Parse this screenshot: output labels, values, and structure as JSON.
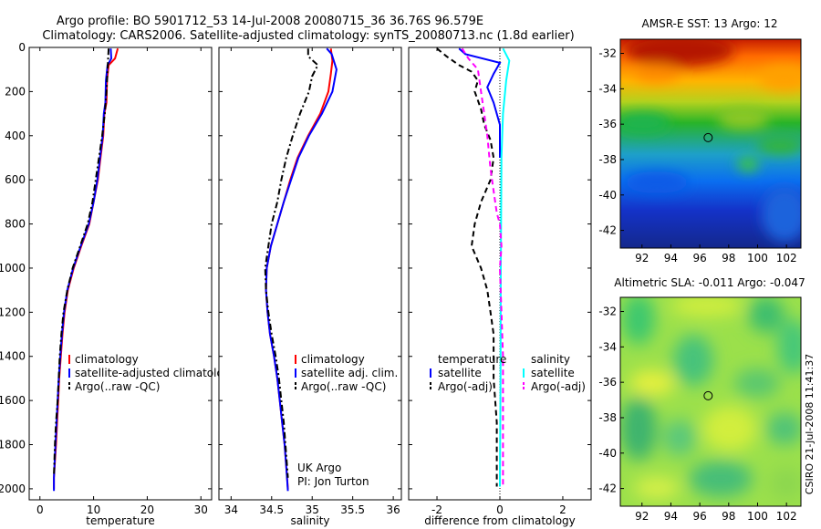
{
  "title_line1": "Argo profile: BO 5901712_53 14-Jul-2008 20080715_36 36.76S 96.579E",
  "title_line2": "Climatology: CARS2006. Satellite-adjusted climatology: synTS_20080713.nc (1.8d earlier)",
  "colors": {
    "climatology": "#ff0000",
    "satellite": "#0000ff",
    "argo": "#000000",
    "salinity_satellite": "#00ffff",
    "salinity_argo": "#ff00ff"
  },
  "chart_data": [
    {
      "id": "temperature",
      "type": "line",
      "xlabel": "temperature",
      "xlim": [
        -2,
        32
      ],
      "ylim": [
        0,
        2050
      ],
      "y_reversed": true,
      "xticks": [
        0,
        10,
        20,
        30
      ],
      "yticks": [
        0,
        200,
        400,
        600,
        800,
        1000,
        1200,
        1400,
        1600,
        1800,
        2000
      ],
      "legend": [
        "climatology",
        "satellite-adjusted climatology",
        "Argo(..raw -QC)"
      ],
      "series": [
        {
          "name": "climatology",
          "color": "#ff0000",
          "dash": "solid",
          "points": [
            [
              14.5,
              5
            ],
            [
              14.0,
              50
            ],
            [
              12.8,
              80
            ],
            [
              12.5,
              150
            ],
            [
              12.4,
              250
            ],
            [
              12.0,
              300
            ],
            [
              11.8,
              400
            ],
            [
              11.3,
              500
            ],
            [
              10.8,
              600
            ],
            [
              10.0,
              700
            ],
            [
              9.2,
              800
            ],
            [
              7.7,
              900
            ],
            [
              6.3,
              1000
            ],
            [
              5.2,
              1100
            ],
            [
              4.6,
              1200
            ],
            [
              4.2,
              1300
            ],
            [
              3.9,
              1400
            ],
            [
              3.6,
              1500
            ],
            [
              3.4,
              1600
            ],
            [
              3.0,
              1800
            ],
            [
              2.6,
              1950
            ],
            [
              2.6,
              2000
            ]
          ]
        },
        {
          "name": "satellite-adjusted climatology",
          "color": "#0000ff",
          "dash": "solid",
          "points": [
            [
              13.2,
              5
            ],
            [
              13.3,
              50
            ],
            [
              12.6,
              80
            ],
            [
              12.3,
              150
            ],
            [
              12.2,
              250
            ],
            [
              11.9,
              300
            ],
            [
              11.7,
              400
            ],
            [
              11.2,
              500
            ],
            [
              10.7,
              600
            ],
            [
              10.0,
              700
            ],
            [
              9.1,
              800
            ],
            [
              7.6,
              900
            ],
            [
              6.2,
              1000
            ],
            [
              5.1,
              1100
            ],
            [
              4.5,
              1200
            ],
            [
              4.1,
              1300
            ],
            [
              3.8,
              1400
            ],
            [
              3.5,
              1500
            ],
            [
              3.3,
              1600
            ],
            [
              2.9,
              1800
            ],
            [
              2.6,
              1950
            ],
            [
              2.6,
              2010
            ]
          ]
        },
        {
          "name": "Argo(..raw -QC)",
          "color": "#000000",
          "dash": "dashdot",
          "points": [
            [
              12.8,
              5
            ],
            [
              12.6,
              100
            ],
            [
              12.4,
              200
            ],
            [
              12.1,
              300
            ],
            [
              11.6,
              400
            ],
            [
              11.0,
              500
            ],
            [
              10.4,
              600
            ],
            [
              9.8,
              700
            ],
            [
              8.9,
              800
            ],
            [
              7.5,
              900
            ],
            [
              6.1,
              1000
            ],
            [
              5.1,
              1100
            ],
            [
              4.4,
              1200
            ],
            [
              4.0,
              1300
            ],
            [
              3.7,
              1400
            ],
            [
              3.5,
              1500
            ],
            [
              3.3,
              1600
            ],
            [
              3.0,
              1700
            ],
            [
              2.8,
              1800
            ],
            [
              2.6,
              1940
            ]
          ]
        }
      ]
    },
    {
      "id": "salinity",
      "type": "line",
      "xlabel": "salinity",
      "xlim": [
        33.85,
        36.1
      ],
      "ylim": [
        0,
        2050
      ],
      "y_reversed": true,
      "xticks": [
        34,
        34.5,
        35,
        35.5,
        36
      ],
      "yticks": [
        0,
        200,
        400,
        600,
        800,
        1000,
        1200,
        1400,
        1600,
        1800,
        2000
      ],
      "legend": [
        "climatology",
        "satellite adj. clim.",
        "Argo(..raw -QC)"
      ],
      "annotations": [
        "UK Argo",
        "PI: Jon Turton"
      ],
      "series": [
        {
          "name": "climatology",
          "color": "#ff0000",
          "dash": "solid",
          "points": [
            [
              35.23,
              5
            ],
            [
              35.25,
              60
            ],
            [
              35.23,
              120
            ],
            [
              35.2,
              200
            ],
            [
              35.1,
              300
            ],
            [
              34.95,
              400
            ],
            [
              34.82,
              500
            ],
            [
              34.73,
              600
            ],
            [
              34.65,
              700
            ],
            [
              34.57,
              800
            ],
            [
              34.49,
              900
            ],
            [
              34.44,
              1000
            ],
            [
              34.43,
              1100
            ],
            [
              34.45,
              1200
            ],
            [
              34.48,
              1300
            ],
            [
              34.53,
              1400
            ],
            [
              34.57,
              1500
            ],
            [
              34.6,
              1600
            ],
            [
              34.63,
              1700
            ],
            [
              34.66,
              1800
            ],
            [
              34.68,
              1900
            ],
            [
              34.7,
              2000
            ]
          ]
        },
        {
          "name": "satellite adj. clim.",
          "color": "#0000ff",
          "dash": "solid",
          "points": [
            [
              35.18,
              5
            ],
            [
              35.24,
              30
            ],
            [
              35.3,
              100
            ],
            [
              35.25,
              200
            ],
            [
              35.12,
              300
            ],
            [
              34.96,
              400
            ],
            [
              34.83,
              500
            ],
            [
              34.74,
              600
            ],
            [
              34.65,
              700
            ],
            [
              34.57,
              800
            ],
            [
              34.49,
              900
            ],
            [
              34.44,
              1000
            ],
            [
              34.43,
              1100
            ],
            [
              34.45,
              1200
            ],
            [
              34.48,
              1300
            ],
            [
              34.53,
              1400
            ],
            [
              34.57,
              1500
            ],
            [
              34.6,
              1600
            ],
            [
              34.63,
              1700
            ],
            [
              34.66,
              1800
            ],
            [
              34.68,
              1900
            ],
            [
              34.7,
              2010
            ]
          ]
        },
        {
          "name": "Argo(..raw -QC)",
          "color": "#000000",
          "dash": "dashdot",
          "points": [
            [
              34.95,
              5
            ],
            [
              34.95,
              40
            ],
            [
              35.07,
              80
            ],
            [
              35.0,
              130
            ],
            [
              34.96,
              200
            ],
            [
              34.85,
              300
            ],
            [
              34.76,
              400
            ],
            [
              34.68,
              500
            ],
            [
              34.62,
              600
            ],
            [
              34.57,
              700
            ],
            [
              34.5,
              800
            ],
            [
              34.46,
              900
            ],
            [
              34.42,
              1000
            ],
            [
              34.43,
              1100
            ],
            [
              34.46,
              1200
            ],
            [
              34.5,
              1300
            ],
            [
              34.55,
              1400
            ],
            [
              34.59,
              1500
            ],
            [
              34.62,
              1600
            ],
            [
              34.65,
              1700
            ],
            [
              34.67,
              1800
            ],
            [
              34.69,
              1900
            ],
            [
              34.7,
              1950
            ]
          ]
        }
      ]
    },
    {
      "id": "difference",
      "type": "line",
      "xlabel": "difference from climatology",
      "xlim": [
        -2.9,
        2.9
      ],
      "ylim": [
        0,
        2050
      ],
      "y_reversed": true,
      "xticks": [
        -2,
        0,
        2
      ],
      "yticks": [
        0,
        200,
        400,
        600,
        800,
        1000,
        1200,
        1400,
        1600,
        1800,
        2000
      ],
      "legend_groups": [
        {
          "heading": "temperature",
          "items": [
            "satellite",
            "Argo(-adj)"
          ]
        },
        {
          "heading": "salinity",
          "items": [
            "satellite",
            "Argo(-adj)"
          ]
        }
      ],
      "series": [
        {
          "name": "temperature satellite",
          "color": "#0000ff",
          "dash": "solid",
          "points": [
            [
              -1.3,
              5
            ],
            [
              -1.1,
              30
            ],
            [
              0.0,
              70
            ],
            [
              -0.2,
              120
            ],
            [
              -0.4,
              180
            ],
            [
              -0.2,
              250
            ],
            [
              0.0,
              350
            ],
            [
              0.0,
              500
            ]
          ]
        },
        {
          "name": "temperature Argo(-adj)",
          "color": "#000000",
          "dash": "dashed",
          "points": [
            [
              -2.0,
              5
            ],
            [
              -1.7,
              40
            ],
            [
              -1.3,
              80
            ],
            [
              -0.9,
              110
            ],
            [
              -0.7,
              150
            ],
            [
              -0.8,
              200
            ],
            [
              -0.6,
              280
            ],
            [
              -0.5,
              350
            ],
            [
              -0.3,
              420
            ],
            [
              -0.2,
              500
            ],
            [
              -0.3,
              600
            ],
            [
              -0.6,
              700
            ],
            [
              -0.8,
              800
            ],
            [
              -0.9,
              900
            ],
            [
              -0.6,
              1000
            ],
            [
              -0.4,
              1100
            ],
            [
              -0.3,
              1200
            ],
            [
              -0.2,
              1300
            ],
            [
              -0.2,
              1500
            ],
            [
              -0.1,
              1700
            ],
            [
              -0.1,
              1990
            ]
          ]
        },
        {
          "name": "salinity satellite",
          "color": "#00ffff",
          "dash": "solid",
          "points": [
            [
              0.1,
              5
            ],
            [
              0.3,
              60
            ],
            [
              0.2,
              150
            ],
            [
              0.1,
              300
            ],
            [
              0.05,
              500
            ],
            [
              0.03,
              1000
            ],
            [
              0.02,
              1500
            ],
            [
              0.0,
              1990
            ]
          ]
        },
        {
          "name": "salinity Argo(-adj)",
          "color": "#ff00ff",
          "dash": "dashed",
          "points": [
            [
              -1.2,
              5
            ],
            [
              -1.0,
              50
            ],
            [
              -0.7,
              100
            ],
            [
              -0.6,
              200
            ],
            [
              -0.5,
              300
            ],
            [
              -0.4,
              400
            ],
            [
              -0.3,
              550
            ],
            [
              -0.2,
              650
            ],
            [
              -0.1,
              750
            ],
            [
              0.0,
              800
            ],
            [
              0.05,
              900
            ],
            [
              0.0,
              1000
            ],
            [
              0.05,
              1200
            ],
            [
              0.1,
              1400
            ],
            [
              0.1,
              1700
            ],
            [
              0.1,
              1990
            ]
          ]
        }
      ]
    }
  ],
  "maps": [
    {
      "id": "sst-map",
      "title": "AMSR-E SST: 13 Argo: 12",
      "xticks": [
        92,
        94,
        96,
        98,
        100,
        102
      ],
      "yticks": [
        -32,
        -34,
        -36,
        -38,
        -40,
        -42
      ],
      "xlim": [
        90.5,
        103
      ],
      "ylim": [
        -43,
        -31.2
      ],
      "profile_location": [
        96.58,
        -36.76
      ]
    },
    {
      "id": "sla-map",
      "title": "Altimetric SLA: -0.011 Argo: -0.047",
      "xticks": [
        92,
        94,
        96,
        98,
        100,
        102
      ],
      "yticks": [
        -32,
        -34,
        -36,
        -38,
        -40,
        -42
      ],
      "xlim": [
        90.5,
        103
      ],
      "ylim": [
        -43,
        -31.2
      ],
      "profile_location": [
        96.58,
        -36.76
      ]
    }
  ],
  "side_label": "CSIRO 21-Jul-2008 11:41:37"
}
